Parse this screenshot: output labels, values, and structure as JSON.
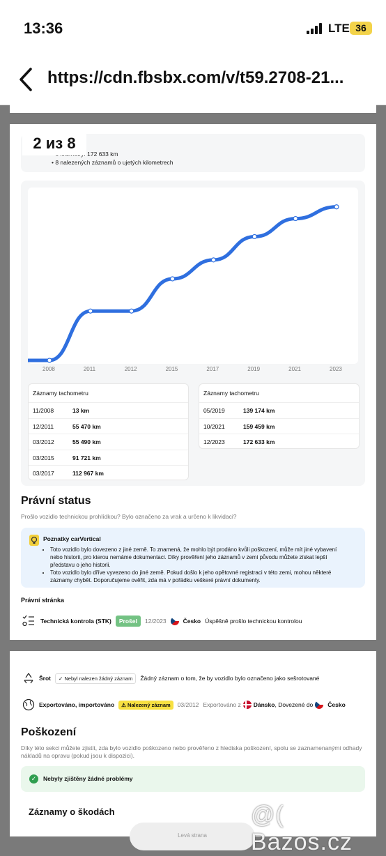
{
  "status": {
    "time": "13:36",
    "network": "LTE",
    "battery": "36"
  },
  "browser": {
    "url": "https://cdn.fbsbx.com/v/t59.2708-21..."
  },
  "gallery": {
    "counter": "2 из 8"
  },
  "mileage_summary": {
    "line1": "é kilometry: 172 633 km",
    "line2": "8 nalezených záznamů o ujetých kilometrech"
  },
  "chart_data": {
    "type": "line",
    "x": [
      "2008",
      "2011",
      "2012",
      "2015",
      "2017",
      "2019",
      "2021",
      "2023"
    ],
    "values": [
      13,
      55470,
      55490,
      91721,
      112967,
      139174,
      159459,
      172633
    ],
    "ylim": [
      0,
      185000
    ],
    "grid": false,
    "color": "#2f6fdf"
  },
  "odometer_tables": [
    {
      "title": "Záznamy tachometru",
      "rows": [
        {
          "date": "11/2008",
          "km": "13 km"
        },
        {
          "date": "12/2011",
          "km": "55 470 km"
        },
        {
          "date": "03/2012",
          "km": "55 490 km"
        },
        {
          "date": "03/2015",
          "km": "91 721 km"
        },
        {
          "date": "03/2017",
          "km": "112 967 km"
        }
      ]
    },
    {
      "title": "Záznamy tachometru",
      "rows": [
        {
          "date": "05/2019",
          "km": "139 174 km"
        },
        {
          "date": "10/2021",
          "km": "159 459 km"
        },
        {
          "date": "12/2023",
          "km": "172 633 km"
        }
      ]
    }
  ],
  "legal": {
    "title": "Právní status",
    "subtitle": "Prošlo vozidlo technickou prohlídkou? Bylo označeno za vrak a určeno k likvidaci?",
    "insights_title": "Poznatky carVertical",
    "insights": [
      "Toto vozidlo bylo dovezeno z jiné země. To znamená, že mohlo být prodáno kvůli poškození, může mít jiné vybavení nebo historii, pro kterou nemáme dokumentaci. Díky prověření jeho záznamů v zemi původu můžete získat lepší představu o jeho historii.",
      "Toto vozidlo bylo dříve vyvezeno do jiné země. Pokud došlo k jeho opětovné registraci v této zemi, mohou některé záznamy chybět. Doporučujeme ověřit, zda má v pořádku veškeré právní dokumenty."
    ],
    "section": "Právní stránka",
    "stk": {
      "label": "Technická kontrola (STK)",
      "badge": "Prošel",
      "date": "12/2023",
      "country": "Česko",
      "text": "Úspěšně prošlo technickou kontrolou"
    },
    "scrap": {
      "label": "Šrot",
      "chip": "Nebyl nalezen žádný záznam",
      "text": "Žádný záznam o tom, že by vozidlo bylo označeno jako sešrotované"
    },
    "export": {
      "label": "Exportováno, importováno",
      "chip": "Nalezený záznam",
      "date": "03/2012",
      "exported_prefix": "Exportováno z",
      "from": "Dánsko",
      "imported_prefix": ", Dovezené do",
      "to": "Česko"
    }
  },
  "damage": {
    "title": "Poškození",
    "subtitle": "Díky této sekci můžete zjistit, zda bylo vozidlo poškozeno nebo prověřeno z hlediska poškození, spolu se zaznamenanými odhady nákladů na opravu (pokud jsou k dispozici).",
    "ok": "Nebyly zjištěny žádné problémy",
    "records_title": "Záznamy o škodách",
    "side_label": "Levá strana"
  },
  "watermark": "@( Bazos.cz"
}
